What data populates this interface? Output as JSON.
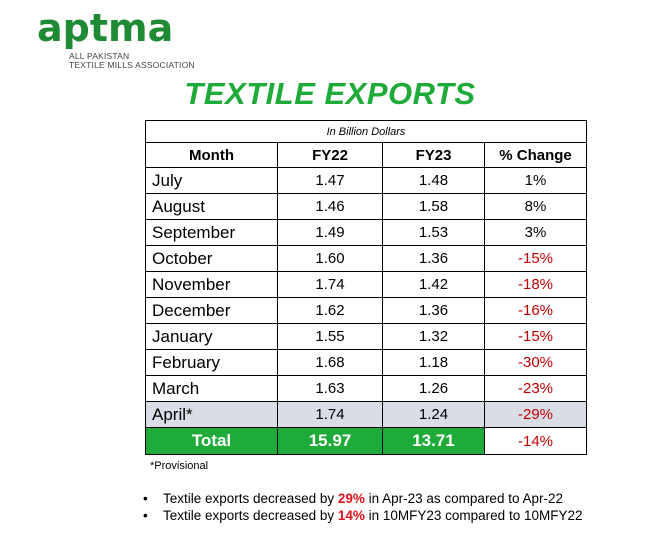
{
  "logo": {
    "word": "aptma",
    "sub_line1": "ALL PAKISTAN",
    "sub_line2": "TEXTILE MILLS ASSOCIATION"
  },
  "title": "TEXTILE EXPORTS",
  "table": {
    "unit_note": "In Billion Dollars",
    "headers": [
      "Month",
      "FY22",
      "FY23",
      "% Change"
    ],
    "rows": [
      {
        "month": "July",
        "fy22": "1.47",
        "fy23": "1.48",
        "change": "1%"
      },
      {
        "month": "August",
        "fy22": "1.46",
        "fy23": "1.58",
        "change": "8%"
      },
      {
        "month": "September",
        "fy22": "1.49",
        "fy23": "1.53",
        "change": "3%"
      },
      {
        "month": "October",
        "fy22": "1.60",
        "fy23": "1.36",
        "change": "-15%"
      },
      {
        "month": "November",
        "fy22": "1.74",
        "fy23": "1.42",
        "change": "-18%"
      },
      {
        "month": "December",
        "fy22": "1.62",
        "fy23": "1.36",
        "change": "-16%"
      },
      {
        "month": "January",
        "fy22": "1.55",
        "fy23": "1.32",
        "change": "-15%"
      },
      {
        "month": "February",
        "fy22": "1.68",
        "fy23": "1.18",
        "change": "-30%"
      },
      {
        "month": "March",
        "fy22": "1.63",
        "fy23": "1.26",
        "change": "-23%"
      },
      {
        "month": "April*",
        "fy22": "1.74",
        "fy23": "1.24",
        "change": "-29%"
      }
    ],
    "total": {
      "label": "Total",
      "fy22": "15.97",
      "fy23": "13.71",
      "change": "-14%"
    }
  },
  "footnote": "*Provisional",
  "bullets": [
    {
      "pre": "Textile exports decreased by ",
      "pct": "29%",
      "post": " in Apr-23 as compared to Apr-22"
    },
    {
      "pre": "Textile exports decreased by ",
      "pct": "14%",
      "post": " in 10MFY23 compared to 10MFY22"
    }
  ],
  "colors": {
    "brand_green": "#1fab3a",
    "negative_red": "#c00000",
    "highlight_row": "#d9dde6"
  }
}
